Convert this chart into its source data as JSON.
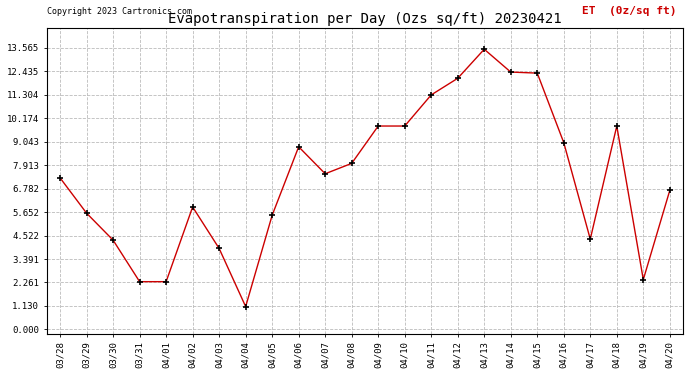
{
  "title": "Evapotranspiration per Day (Ozs sq/ft) 20230421",
  "copyright": "Copyright 2023 Cartronics.com",
  "legend_label": "ET  (0z/sq ft)",
  "dates": [
    "03/28",
    "03/29",
    "03/30",
    "03/31",
    "04/01",
    "04/02",
    "04/03",
    "04/04",
    "04/05",
    "04/06",
    "04/07",
    "04/08",
    "04/09",
    "04/10",
    "04/11",
    "04/12",
    "04/13",
    "04/14",
    "04/15",
    "04/16",
    "04/17",
    "04/18",
    "04/19",
    "04/20"
  ],
  "values": [
    7.3,
    5.6,
    4.3,
    2.3,
    2.3,
    5.9,
    3.9,
    1.1,
    5.5,
    8.8,
    7.5,
    8.0,
    9.8,
    9.8,
    11.3,
    12.1,
    13.5,
    12.4,
    12.35,
    9.0,
    4.35,
    9.8,
    2.4,
    6.7
  ],
  "line_color": "#cc0000",
  "marker_color": "#000000",
  "background_color": "#ffffff",
  "grid_color": "#bbbbbb",
  "title_fontsize": 10,
  "copyright_fontsize": 6,
  "legend_fontsize": 8,
  "yticks": [
    0.0,
    1.13,
    2.261,
    3.391,
    4.522,
    5.652,
    6.782,
    7.913,
    9.043,
    10.174,
    11.304,
    12.435,
    13.565
  ],
  "ylim": [
    -0.2,
    14.5
  ]
}
